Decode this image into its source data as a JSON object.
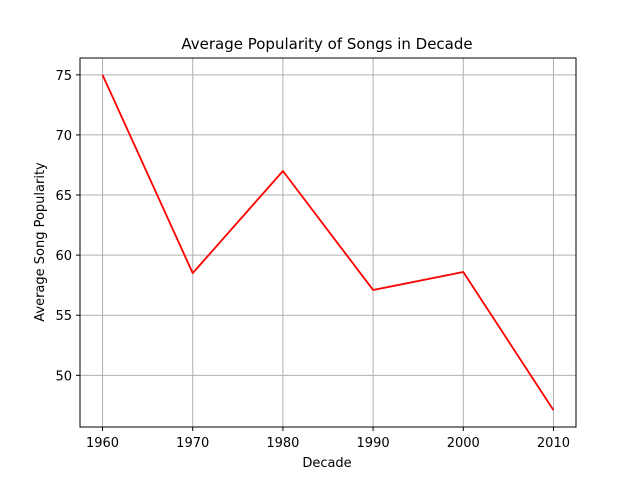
{
  "chart_data": {
    "type": "line",
    "title": "Average Popularity of Songs in Decade",
    "xlabel": "Decade",
    "ylabel": "Average Song Popularity",
    "x": [
      1960,
      1970,
      1980,
      1990,
      2000,
      2010
    ],
    "series": [
      {
        "values": [
          75.0,
          58.5,
          67.0,
          57.1,
          58.6,
          47.1
        ],
        "color": "#ff0000"
      }
    ],
    "xticks": [
      "1960",
      "1970",
      "1980",
      "1990",
      "2000",
      "2010"
    ],
    "yticks": [
      "50",
      "55",
      "60",
      "65",
      "70",
      "75"
    ],
    "xlim": [
      1957.5,
      2012.5
    ],
    "ylim": [
      45.7,
      76.4
    ],
    "grid": true,
    "grid_color": "#b0b0b0"
  }
}
